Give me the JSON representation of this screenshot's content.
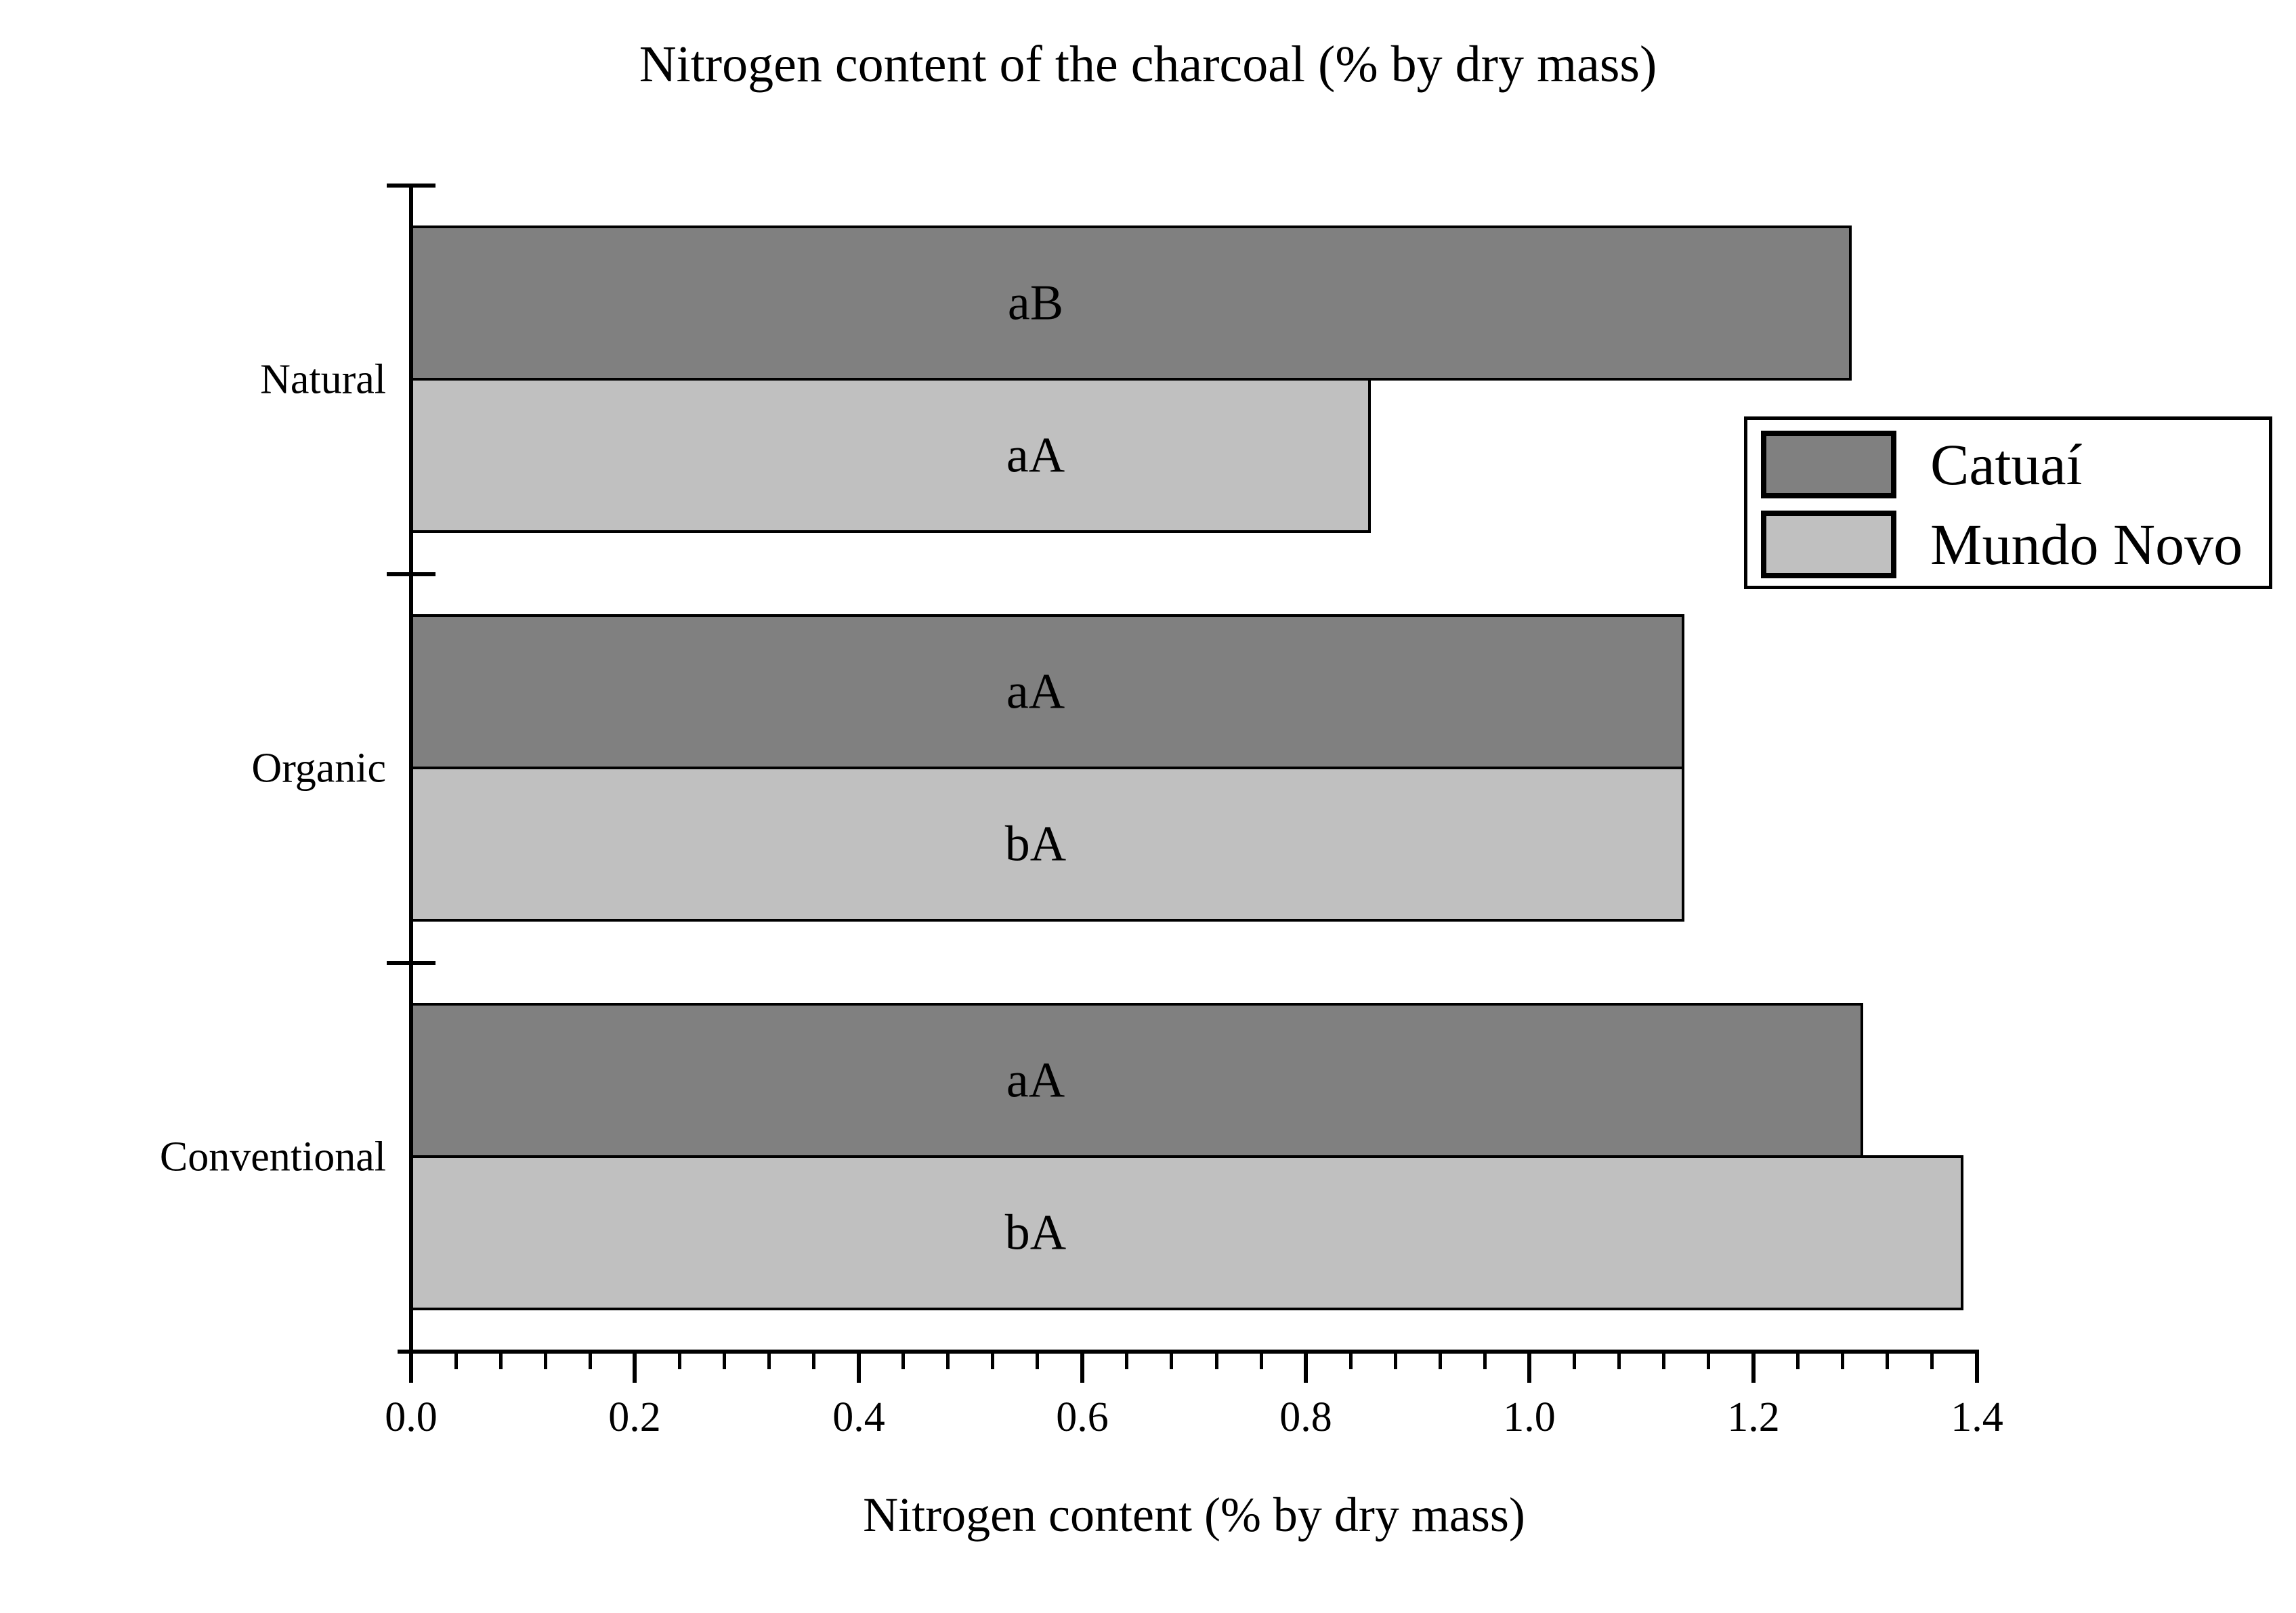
{
  "chart_data": {
    "type": "bar",
    "orientation": "horizontal",
    "title": "Nitrogen content of the charcoal (% by dry mass)",
    "xlabel": "Nitrogen content (% by dry mass)",
    "xlim": [
      0,
      1.4
    ],
    "x_ticks": [
      "0.0",
      "0.2",
      "0.4",
      "0.6",
      "0.8",
      "1.0",
      "1.2",
      "1.4"
    ],
    "minor_ticks_per_interval": 4,
    "grid": false,
    "legend_position": "right-center",
    "categories": [
      "Natural",
      "Organic",
      "Conventional"
    ],
    "series": [
      {
        "name": "Catuaí",
        "color": "#808080",
        "values": [
          1.29,
          1.14,
          1.3
        ],
        "bar_labels": [
          "aB",
          "aA",
          "aA"
        ]
      },
      {
        "name": "Mundo Novo",
        "color": "#C0C0C0",
        "values": [
          0.86,
          1.14,
          1.39
        ],
        "bar_labels": [
          "aA",
          "bA",
          "bA"
        ]
      }
    ],
    "colors": {
      "bar_border": "#000000",
      "axis": "#000000",
      "background": "#FFFFFF",
      "text": "#000000"
    }
  }
}
